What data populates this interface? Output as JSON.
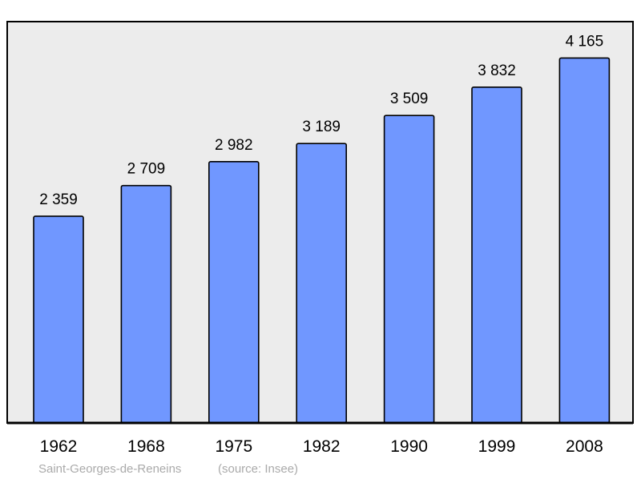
{
  "chart_data": {
    "type": "bar",
    "categories": [
      "1962",
      "1968",
      "1975",
      "1982",
      "1990",
      "1999",
      "2008"
    ],
    "values": [
      2359,
      2709,
      2982,
      3189,
      3509,
      3832,
      4165
    ],
    "value_labels": [
      "2 359",
      "2 709",
      "2 982",
      "3 189",
      "3 509",
      "3 832",
      "4 165"
    ],
    "ylim": [
      0,
      4580
    ],
    "grid": false,
    "legend": "none",
    "bar_color": "#7097ff",
    "plot_background": "#ececec",
    "footer": {
      "place": "Saint-Georges-de-Reneins",
      "source": "(source: Insee)"
    }
  }
}
